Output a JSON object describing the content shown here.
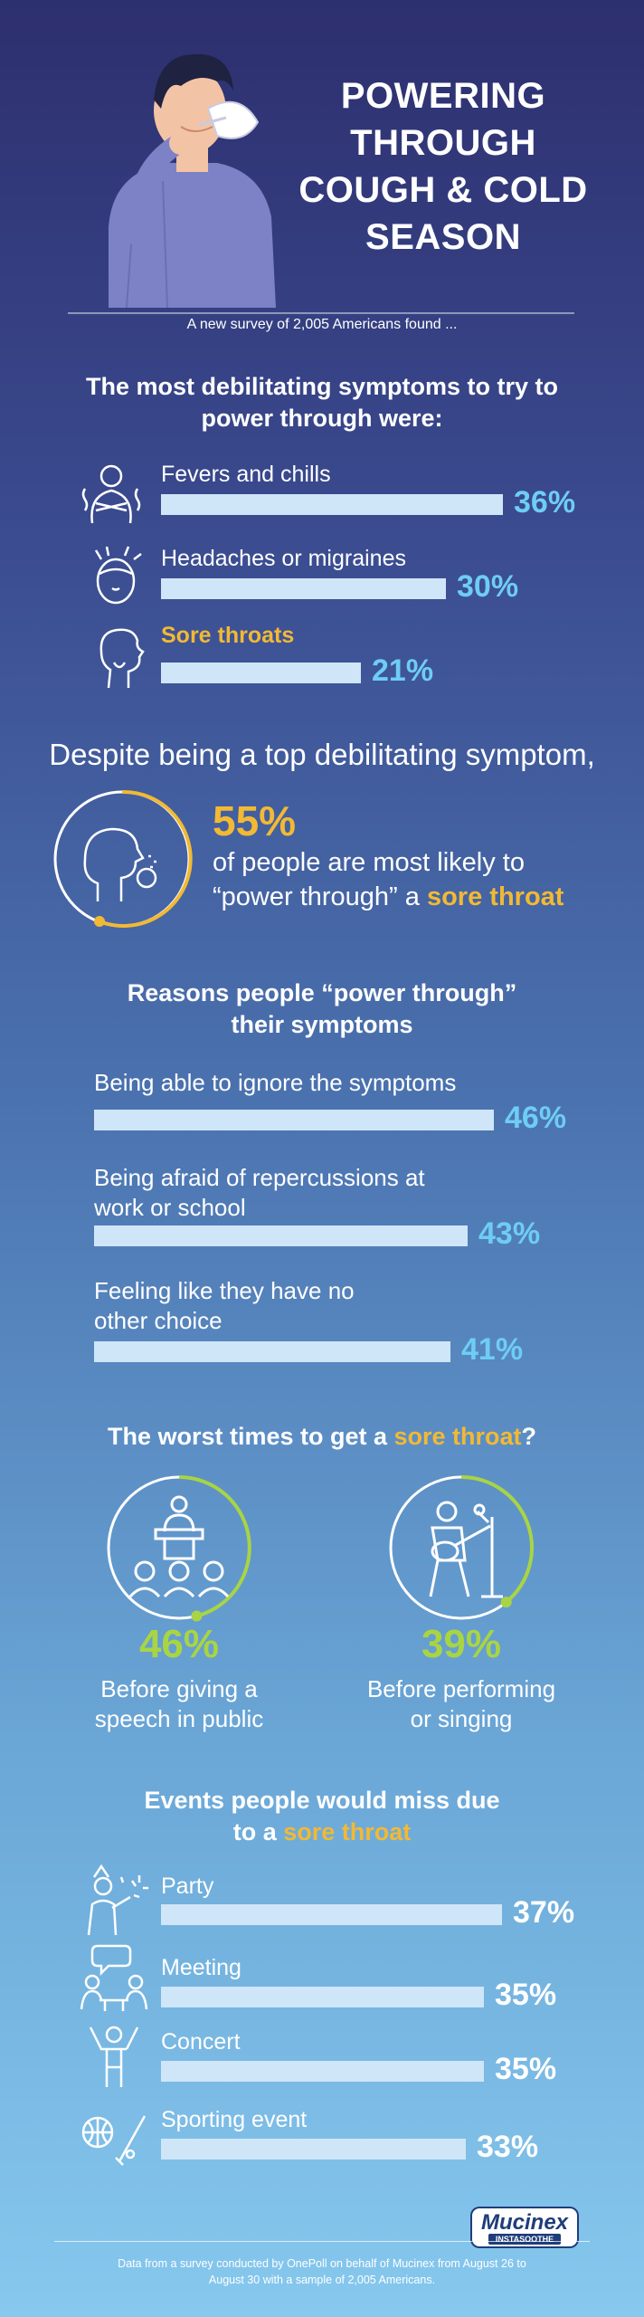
{
  "header": {
    "title_lines": [
      "POWERING",
      "THROUGH",
      "COUGH & COLD",
      "SEASON"
    ],
    "survey_note": "A new survey of 2,005 Americans found ..."
  },
  "symptoms": {
    "heading_line1": "The most debilitating symptoms to try to",
    "heading_line2": "power through were:",
    "items": [
      {
        "label": "Fevers and chills",
        "value": 36,
        "value_label": "36%",
        "icon": "fever-person-icon",
        "highlight": false
      },
      {
        "label": "Headaches or migraines",
        "value": 30,
        "value_label": "30%",
        "icon": "headache-icon",
        "highlight": false
      },
      {
        "label": "Sore throats",
        "value": 21,
        "value_label": "21%",
        "icon": "sore-throat-icon",
        "highlight": true
      }
    ]
  },
  "highlight_stat": {
    "intro": "Despite being a top debilitating symptom,",
    "value": 55,
    "value_label": "55%",
    "line1": "of people are most likely to",
    "line2_prefix": "“power through” a ",
    "line2_highlight": "sore throat",
    "icon": "coughing-person-icon"
  },
  "reasons": {
    "heading_line1": "Reasons people “power through”",
    "heading_line2": "their symptoms",
    "items": [
      {
        "lines": [
          "Being able to ignore the symptoms"
        ],
        "value": 46,
        "value_label": "46%"
      },
      {
        "lines": [
          "Being afraid of repercussions at",
          "work or school"
        ],
        "value": 43,
        "value_label": "43%"
      },
      {
        "lines": [
          "Feeling like they have no",
          "other choice"
        ],
        "value": 41,
        "value_label": "41%"
      }
    ]
  },
  "worst_times": {
    "heading_prefix": "The worst times to get a ",
    "heading_highlight": "sore throat",
    "heading_suffix": "?",
    "items": [
      {
        "value": 46,
        "value_label": "46%",
        "lines": [
          "Before giving a",
          "speech in public"
        ],
        "icon": "public-speaking-icon"
      },
      {
        "value": 39,
        "value_label": "39%",
        "lines": [
          "Before performing",
          "or singing"
        ],
        "icon": "singer-guitar-icon"
      }
    ]
  },
  "events": {
    "heading_line1": "Events people would miss due",
    "heading_line2_prefix": "to a ",
    "heading_line2_highlight": "sore throat",
    "items": [
      {
        "label": "Party",
        "value": 37,
        "value_label": "37%",
        "icon": "party-icon"
      },
      {
        "label": "Meeting",
        "value": 35,
        "value_label": "35%",
        "icon": "meeting-icon"
      },
      {
        "label": "Concert",
        "value": 35,
        "value_label": "35%",
        "icon": "concert-icon"
      },
      {
        "label": "Sporting event",
        "value": 33,
        "value_label": "33%",
        "icon": "sports-icon"
      }
    ]
  },
  "footer": {
    "brand": "Mucinex",
    "brand_sub": "INSTASOOTHE",
    "note": "Data from a survey conducted by OnePoll on behalf of Mucinex from August 26 to August 30 with a sample of 2,005 Americans."
  },
  "colors": {
    "accent_yellow": "#f2b934",
    "accent_blue": "#6ecdf3",
    "accent_green": "#a9d444",
    "bar": "#cfe6f8"
  },
  "chart_data": [
    {
      "type": "bar",
      "title": "The most debilitating symptoms to try to power through were:",
      "categories": [
        "Fevers and chills",
        "Headaches or migraines",
        "Sore throats"
      ],
      "values": [
        36,
        30,
        21
      ]
    },
    {
      "type": "bar",
      "title": "Reasons people “power through” their symptoms",
      "categories": [
        "Being able to ignore the symptoms",
        "Being afraid of repercussions at work or school",
        "Feeling like they have no other choice"
      ],
      "values": [
        46,
        43,
        41
      ]
    },
    {
      "type": "bar",
      "title": "The worst times to get a sore throat?",
      "categories": [
        "Before giving a speech in public",
        "Before performing or singing"
      ],
      "values": [
        46,
        39
      ]
    },
    {
      "type": "bar",
      "title": "Events people would miss due to a sore throat",
      "categories": [
        "Party",
        "Meeting",
        "Concert",
        "Sporting event"
      ],
      "values": [
        37,
        35,
        35,
        33
      ]
    }
  ]
}
